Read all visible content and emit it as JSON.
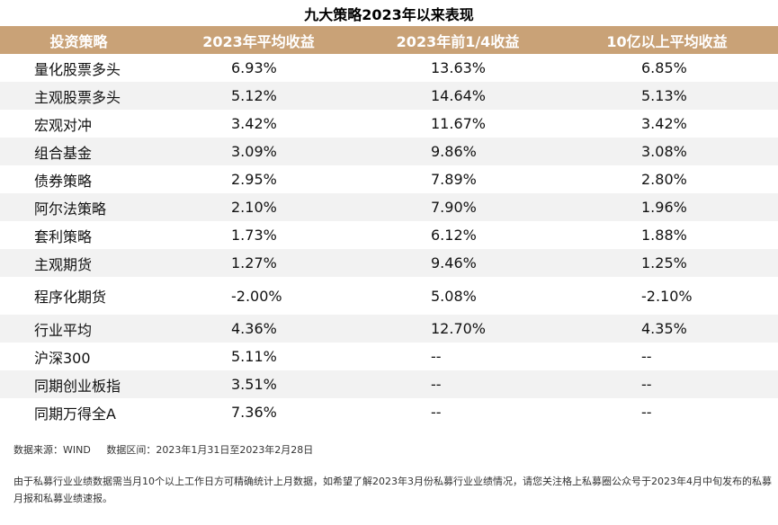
{
  "title": "九大策略2023年以来表现",
  "header_bg": "#c9a277",
  "columns": [
    "投资策略",
    "2023年平均收益",
    "2023年前1/4收益",
    "10亿以上平均收益"
  ],
  "rows": [
    {
      "name": "量化股票多头",
      "avg": "6.93%",
      "q1": "13.63%",
      "big": "6.85%"
    },
    {
      "name": "主观股票多头",
      "avg": "5.12%",
      "q1": "14.64%",
      "big": "5.13%"
    },
    {
      "name": "宏观对冲",
      "avg": "3.42%",
      "q1": "11.67%",
      "big": "3.42%"
    },
    {
      "name": "组合基金",
      "avg": "3.09%",
      "q1": "9.86%",
      "big": "3.08%"
    },
    {
      "name": "债券策略",
      "avg": "2.95%",
      "q1": "7.89%",
      "big": "2.80%"
    },
    {
      "name": "阿尔法策略",
      "avg": "2.10%",
      "q1": "7.90%",
      "big": "1.96%"
    },
    {
      "name": "套利策略",
      "avg": "1.73%",
      "q1": "6.12%",
      "big": "1.88%"
    },
    {
      "name": "主观期货",
      "avg": "1.27%",
      "q1": "9.46%",
      "big": "1.25%"
    },
    {
      "name": "程序化期货",
      "avg": "-2.00%",
      "q1": "5.08%",
      "big": "-2.10%"
    },
    {
      "name": "行业平均",
      "avg": "4.36%",
      "q1": "12.70%",
      "big": "4.35%"
    },
    {
      "name": "沪深300",
      "avg": "5.11%",
      "q1": "--",
      "big": "--"
    },
    {
      "name": "同期创业板指",
      "avg": "3.51%",
      "q1": "--",
      "big": "--"
    },
    {
      "name": "同期万得全A",
      "avg": "7.36%",
      "q1": "--",
      "big": "--"
    }
  ],
  "footer": {
    "source": "数据来源：WIND",
    "period": "数据区间：2023年1月31日至2023年2月28日",
    "note": "由于私募行业业绩数据需当月10个以上工作日方可精确统计上月数据，如希望了解2023年3月份私募行业业绩情况，请您关注格上私募圈公众号于2023年4月中旬发布的私募月报和私募业绩速报。"
  }
}
